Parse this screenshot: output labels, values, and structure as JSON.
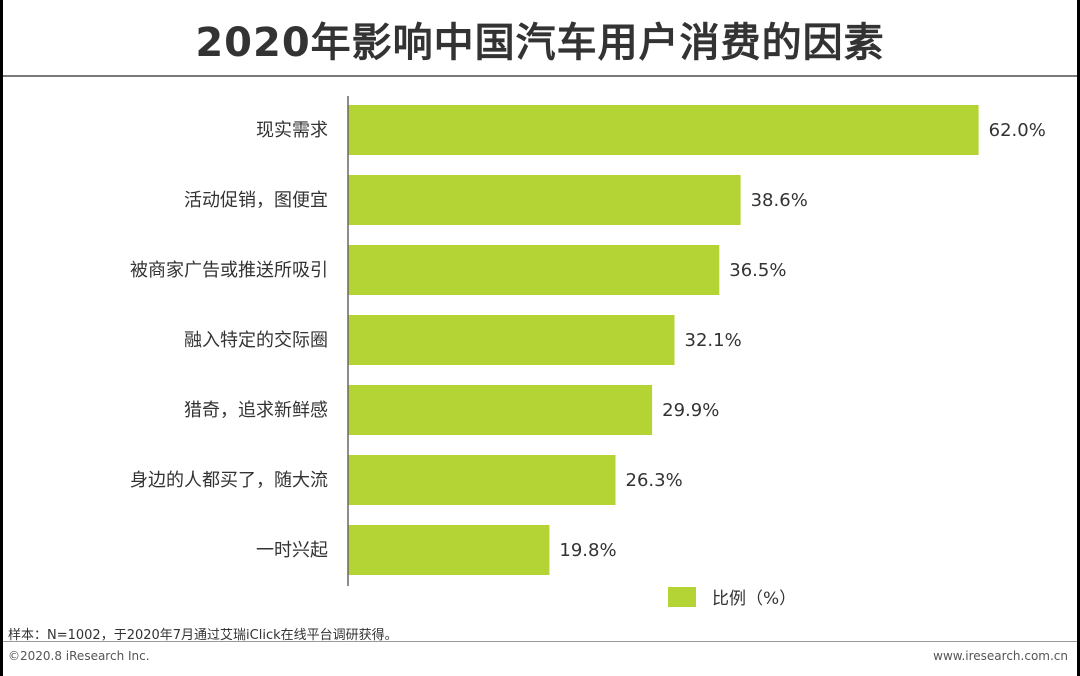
{
  "title": "2020年影响中国汽车用户消费的因素",
  "colors": {
    "bar": "#b4d334",
    "axis": "#666666",
    "text": "#333333"
  },
  "chart_data": {
    "type": "bar",
    "orientation": "horizontal",
    "title": "2020年影响中国汽车用户消费的因素",
    "categories": [
      "现实需求",
      "活动促销，图便宜",
      "被商家广告或推送所吸引",
      "融入特定的交际圈",
      "猎奇，追求新鲜感",
      "身边的人都买了，随大流",
      "一时兴起"
    ],
    "values": [
      62.0,
      38.6,
      36.5,
      32.1,
      29.9,
      26.3,
      19.8
    ],
    "value_labels": [
      "62.0%",
      "38.6%",
      "36.5%",
      "32.1%",
      "29.9%",
      "26.3%",
      "19.8%"
    ],
    "series_name": "比例（%）",
    "xlim": [
      0,
      70
    ],
    "grid": false,
    "legend": "bottom-right"
  },
  "legend_label": "比例（%）",
  "footnote": "样本：N=1002，于2020年7月通过艾瑞iClick在线平台调研获得。",
  "copyright": "©2020.8 iResearch Inc.",
  "website": "www.iresearch.com.cn"
}
